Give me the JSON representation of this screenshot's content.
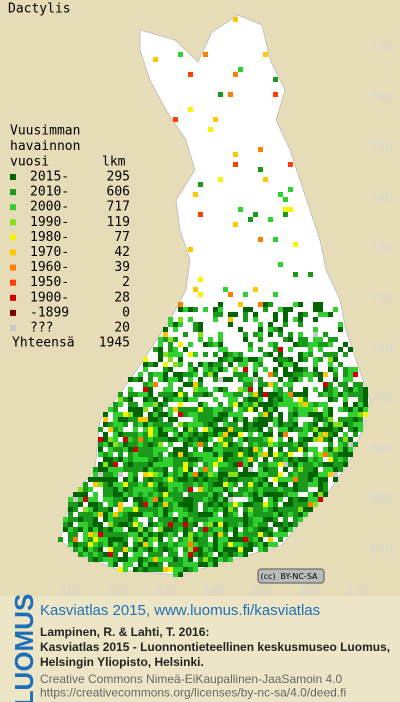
{
  "title": "Dactylis",
  "legend": {
    "heading": [
      "Vuusimman",
      "havainnon",
      "vuosi"
    ],
    "count_heading": "lkm",
    "items": [
      {
        "label": "2015-",
        "count": 295,
        "color": "#006400"
      },
      {
        "label": "2010-",
        "count": 606,
        "color": "#1a9a1a"
      },
      {
        "label": "2000-",
        "count": 717,
        "color": "#2fd02f"
      },
      {
        "label": "1990-",
        "count": 119,
        "color": "#86e01a"
      },
      {
        "label": "1980-",
        "count": 77,
        "color": "#f5f500"
      },
      {
        "label": "1970-",
        "count": 42,
        "color": "#ffc800"
      },
      {
        "label": "1960-",
        "count": 39,
        "color": "#ff8000"
      },
      {
        "label": "1950-",
        "count": 2,
        "color": "#ff4000"
      },
      {
        "label": "1900-",
        "count": 28,
        "color": "#d00000"
      },
      {
        "label": "-1899",
        "count": 0,
        "color": "#800000"
      },
      {
        "label": "???",
        "count": 20,
        "color": "#c8c8c8"
      }
    ],
    "total_label": "Yhteensä",
    "total": 1945
  },
  "grid_labels": {
    "north": [
      770,
      760,
      750,
      740,
      730,
      720,
      710,
      700,
      690,
      680,
      670
    ],
    "east": [
      310,
      320,
      330,
      340,
      350,
      360,
      370
    ]
  },
  "license_badge": "BY-NC-SA",
  "logo": "LUOMUS",
  "footer": {
    "atlas": "Kasviatlas 2015, www.luomus.fi/kasviatlas",
    "citation": [
      "Lampinen, R. & Lahti, T. 2016:",
      "Kasviatlas 2015 - Luonnontieteellinen keskusmuseo Luomus,",
      "Helsingin Yliopisto, Helsinki."
    ],
    "license": [
      "Creative Commons Nimeä-EiKaupallinen-JaaSamoin 4.0",
      "https://creativecommons.org/licenses/by-nc-sa/4.0/deed.fi"
    ]
  }
}
